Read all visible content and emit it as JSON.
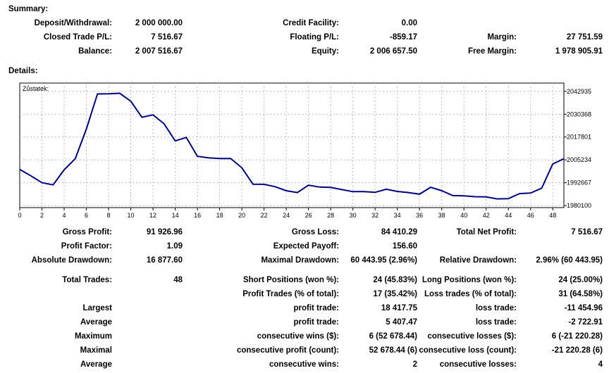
{
  "summary": {
    "heading": "Summary:",
    "deposit_label": "Deposit/Withdrawal:",
    "deposit_value": "2 000 000.00",
    "credit_label": "Credit Facility:",
    "credit_value": "0.00",
    "closed_pl_label": "Closed Trade P/L:",
    "closed_pl_value": "7 516.67",
    "floating_label": "Floating P/L:",
    "floating_value": "-859.17",
    "margin_label": "Margin:",
    "margin_value": "27 751.59",
    "balance_label": "Balance:",
    "balance_value": "2 007 516.67",
    "equity_label": "Equity:",
    "equity_value": "2 006 657.50",
    "free_margin_label": "Free Margin:",
    "free_margin_value": "1 978 905.91"
  },
  "details": {
    "heading": "Details:",
    "gross_profit_label": "Gross Profit:",
    "gross_profit_value": "91 926.96",
    "gross_loss_label": "Gross Loss:",
    "gross_loss_value": "84 410.29",
    "total_net_label": "Total Net Profit:",
    "total_net_value": "7 516.67",
    "profit_factor_label": "Profit Factor:",
    "profit_factor_value": "1.09",
    "expected_payoff_label": "Expected Payoff:",
    "expected_payoff_value": "156.60",
    "abs_dd_label": "Absolute Drawdown:",
    "abs_dd_value": "16 877.60",
    "max_dd_label": "Maximal Drawdown:",
    "max_dd_value": "60 443.95 (2.96%)",
    "rel_dd_label": "Relative Drawdown:",
    "rel_dd_value": "2.96% (60 443.95)",
    "total_trades_label": "Total Trades:",
    "total_trades_value": "48",
    "short_label": "Short Positions (won %):",
    "short_value": "24 (45.83%)",
    "long_label": "Long Positions (won %):",
    "long_value": "24 (25.00%)",
    "profit_trades_label": "Profit Trades (% of total):",
    "profit_trades_value": "17 (35.42%)",
    "loss_trades_label": "Loss trades (% of total):",
    "loss_trades_value": "31 (64.58%)",
    "largest_label": "Largest",
    "largest_profit_label": "profit trade:",
    "largest_profit_value": "18 417.75",
    "largest_loss_label": "loss trade:",
    "largest_loss_value": "-11 454.96",
    "average_label": "Average",
    "average_profit_label": "profit trade:",
    "average_profit_value": "5 407.47",
    "average_loss_label": "loss trade:",
    "average_loss_value": "-2 722.91",
    "maximum_label": "Maximum",
    "max_cons_wins_label": "consecutive wins ($):",
    "max_cons_wins_value": "6 (52 678.44)",
    "max_cons_losses_label": "consecutive losses ($):",
    "max_cons_losses_value": "6 (-21 220.28)",
    "maximal_label": "Maximal",
    "maximal_profit_label": "consecutive profit (count):",
    "maximal_profit_value": "52 678.44 (6)",
    "maximal_loss_label": "consecutive loss (count):",
    "maximal_loss_value": "-21 220.28 (6)",
    "average2_label": "Average",
    "avg_cons_wins_label": "consecutive wins:",
    "avg_cons_wins_value": "2",
    "avg_cons_losses_label": "consecutive losses:",
    "avg_cons_losses_value": "4"
  },
  "chart_data": {
    "type": "line",
    "title": "Zůstatek:",
    "line_color": "#000080",
    "grid": true,
    "x_ticks": [
      0,
      2,
      4,
      6,
      8,
      10,
      12,
      14,
      16,
      18,
      20,
      22,
      24,
      26,
      28,
      30,
      32,
      34,
      36,
      38,
      40,
      42,
      44,
      46,
      48
    ],
    "y_ticks": [
      "2042935",
      "2030368",
      "2017801",
      "2005234",
      "1992667",
      "1980100"
    ],
    "y_tick_values": [
      2042935,
      2030368,
      2017801,
      2005234,
      1992667,
      1980100
    ],
    "xlim": [
      0,
      49
    ],
    "ylim": [
      1979000,
      2047500
    ],
    "x": [
      0,
      1,
      2,
      3,
      4,
      5,
      6,
      7,
      8,
      9,
      10,
      11,
      12,
      13,
      14,
      15,
      16,
      17,
      18,
      19,
      20,
      21,
      22,
      23,
      24,
      25,
      26,
      27,
      28,
      29,
      30,
      31,
      32,
      33,
      34,
      35,
      36,
      37,
      38,
      39,
      40,
      41,
      42,
      43,
      44,
      45,
      46,
      47,
      48,
      49
    ],
    "values": [
      2000000,
      1996500,
      1992700,
      1991500,
      1999800,
      2005900,
      2022200,
      2041500,
      2041600,
      2041900,
      2037500,
      2028700,
      2030000,
      2025100,
      2015700,
      2017600,
      2007200,
      2006400,
      2006000,
      2006000,
      2000900,
      1991900,
      1991800,
      1990500,
      1988300,
      1987300,
      1991300,
      1990300,
      1990100,
      1988900,
      1987800,
      1987800,
      1987400,
      1989100,
      1987900,
      1987300,
      1986400,
      1990200,
      1988300,
      1985600,
      1985500,
      1985000,
      1984900,
      1983800,
      1983900,
      1986700,
      1987000,
      1989700,
      2003000,
      2005900
    ]
  }
}
